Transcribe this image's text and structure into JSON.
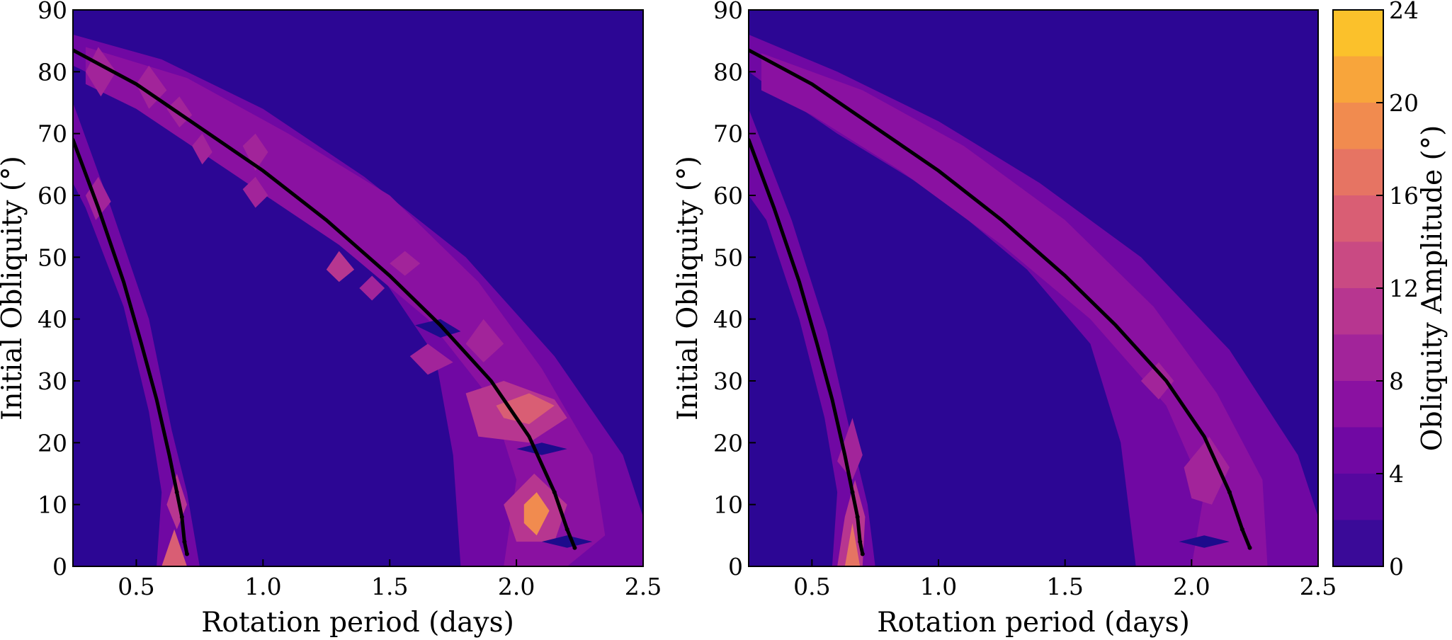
{
  "colors": {
    "background_field": "#2c0694",
    "curve": "#000000",
    "colorbar": [
      "#1d0b8c",
      "#3a0a98",
      "#56079f",
      "#7008a3",
      "#8a11a1",
      "#a2249a",
      "#b73690",
      "#c94a83",
      "#d95e74",
      "#e67463",
      "#f18b4f",
      "#f8a53b",
      "#fbc12b",
      "#f3e727"
    ]
  },
  "chart_data": [
    {
      "type": "contourf",
      "panel": "left",
      "xlabel": "Rotation period (days)",
      "ylabel": "Initial Obliquity (°)",
      "xlim": [
        0.25,
        2.5
      ],
      "ylim": [
        0,
        90
      ],
      "xticks": [
        "0.5",
        "1.0",
        "1.5",
        "2.0",
        "2.5"
      ],
      "yticks": [
        "0",
        "10",
        "20",
        "30",
        "40",
        "50",
        "60",
        "70",
        "80",
        "90"
      ],
      "background_amplitude": 2,
      "resonance_curves": [
        {
          "name": "inner",
          "x": [
            0.25,
            0.35,
            0.45,
            0.52,
            0.58,
            0.63,
            0.66,
            0.68,
            0.69,
            0.7
          ],
          "y": [
            69,
            58,
            46,
            36,
            27,
            18,
            12,
            8,
            4,
            2
          ]
        },
        {
          "name": "outer",
          "x": [
            0.25,
            0.5,
            0.75,
            1.0,
            1.25,
            1.5,
            1.7,
            1.9,
            2.05,
            2.15,
            2.2,
            2.23
          ],
          "y": [
            83.5,
            78,
            71,
            64,
            56,
            47,
            39,
            30,
            21,
            12,
            6,
            3
          ]
        }
      ],
      "contours": [
        {
          "level": 4,
          "points": [
            [
              0.25,
              75
            ],
            [
              0.4,
              58
            ],
            [
              0.55,
              40
            ],
            [
              0.64,
              22
            ],
            [
              0.7,
              12
            ],
            [
              0.75,
              0
            ],
            [
              0.58,
              0
            ],
            [
              0.6,
              12
            ],
            [
              0.55,
              25
            ],
            [
              0.45,
              42
            ],
            [
              0.3,
              58
            ],
            [
              0.25,
              62
            ]
          ]
        },
        {
          "level": 4,
          "points": [
            [
              0.25,
              86
            ],
            [
              0.6,
              82
            ],
            [
              1.0,
              74
            ],
            [
              1.4,
              63
            ],
            [
              1.8,
              50
            ],
            [
              2.15,
              34
            ],
            [
              2.42,
              18
            ],
            [
              2.5,
              8
            ],
            [
              2.5,
              0
            ],
            [
              1.78,
              0
            ],
            [
              1.75,
              18
            ],
            [
              1.68,
              34
            ],
            [
              1.45,
              48
            ],
            [
              1.1,
              60
            ],
            [
              0.7,
              70
            ],
            [
              0.4,
              78
            ],
            [
              0.25,
              81
            ]
          ]
        },
        {
          "level": 6,
          "points": [
            [
              0.3,
              84
            ],
            [
              0.7,
              79
            ],
            [
              1.1,
              70
            ],
            [
              1.5,
              60
            ],
            [
              1.85,
              46
            ],
            [
              2.1,
              32
            ],
            [
              2.3,
              18
            ],
            [
              2.35,
              5
            ],
            [
              2.2,
              0
            ],
            [
              1.95,
              0
            ],
            [
              2.0,
              14
            ],
            [
              1.9,
              27
            ],
            [
              1.65,
              40
            ],
            [
              1.3,
              52
            ],
            [
              0.9,
              63
            ],
            [
              0.5,
              74
            ],
            [
              0.3,
              78
            ]
          ]
        },
        {
          "level": 10,
          "points": [
            [
              1.8,
              28
            ],
            [
              1.95,
              30
            ],
            [
              2.15,
              27
            ],
            [
              2.2,
              24
            ],
            [
              2.05,
              20
            ],
            [
              1.85,
              21
            ]
          ]
        },
        {
          "level": 14,
          "points": [
            [
              1.92,
              26
            ],
            [
              2.05,
              28
            ],
            [
              2.15,
              26
            ],
            [
              2.05,
              23
            ],
            [
              1.95,
              24
            ]
          ]
        },
        {
          "level": 10,
          "points": [
            [
              1.95,
              10
            ],
            [
              2.07,
              15
            ],
            [
              2.2,
              10
            ],
            [
              2.15,
              4
            ],
            [
              2.0,
              4
            ]
          ]
        },
        {
          "level": 18,
          "points": [
            [
              2.03,
              10
            ],
            [
              2.08,
              12
            ],
            [
              2.13,
              9
            ],
            [
              2.08,
              5
            ],
            [
              2.03,
              7
            ]
          ]
        },
        {
          "level": 10,
          "points": [
            [
              1.25,
              48
            ],
            [
              1.3,
              51
            ],
            [
              1.36,
              48
            ],
            [
              1.3,
              46
            ]
          ]
        },
        {
          "level": 8,
          "points": [
            [
              1.5,
              49
            ],
            [
              1.56,
              51
            ],
            [
              1.62,
              49
            ],
            [
              1.56,
              47
            ]
          ]
        },
        {
          "level": 8,
          "points": [
            [
              1.38,
              45
            ],
            [
              1.43,
              47
            ],
            [
              1.48,
              45
            ],
            [
              1.43,
              43
            ]
          ]
        },
        {
          "level": 8,
          "points": [
            [
              1.8,
              36
            ],
            [
              1.87,
              40
            ],
            [
              1.95,
              36
            ],
            [
              1.87,
              33
            ]
          ]
        },
        {
          "level": 8,
          "points": [
            [
              1.58,
              34
            ],
            [
              1.65,
              36
            ],
            [
              1.75,
              33
            ],
            [
              1.65,
              31
            ]
          ]
        },
        {
          "level": 8,
          "points": [
            [
              0.3,
              80
            ],
            [
              0.35,
              84
            ],
            [
              0.42,
              80
            ],
            [
              0.36,
              76
            ]
          ]
        },
        {
          "level": 8,
          "points": [
            [
              0.5,
              78
            ],
            [
              0.55,
              81
            ],
            [
              0.62,
              77
            ],
            [
              0.55,
              74
            ]
          ]
        },
        {
          "level": 8,
          "points": [
            [
              0.62,
              74
            ],
            [
              0.67,
              76
            ],
            [
              0.72,
              73
            ],
            [
              0.67,
              71
            ]
          ]
        },
        {
          "level": 8,
          "points": [
            [
              0.92,
              68
            ],
            [
              0.97,
              70
            ],
            [
              1.02,
              67
            ],
            [
              0.97,
              64
            ]
          ]
        },
        {
          "level": 8,
          "points": [
            [
              0.92,
              61
            ],
            [
              0.97,
              63
            ],
            [
              1.02,
              60
            ],
            [
              0.97,
              58
            ]
          ]
        },
        {
          "level": 8,
          "points": [
            [
              0.72,
              68
            ],
            [
              0.76,
              70
            ],
            [
              0.8,
              67
            ],
            [
              0.76,
              65
            ]
          ]
        },
        {
          "level": 8,
          "points": [
            [
              0.3,
              60
            ],
            [
              0.35,
              63
            ],
            [
              0.4,
              59
            ],
            [
              0.34,
              56
            ]
          ]
        },
        {
          "level": 10,
          "points": [
            [
              0.62,
              10
            ],
            [
              0.66,
              15
            ],
            [
              0.7,
              10
            ],
            [
              0.66,
              6
            ]
          ]
        },
        {
          "level": 14,
          "points": [
            [
              0.6,
              0
            ],
            [
              0.65,
              6
            ],
            [
              0.7,
              0
            ]
          ]
        },
        {
          "level": 0,
          "points": [
            [
              2.1,
              4
            ],
            [
              2.2,
              5
            ],
            [
              2.3,
              4
            ],
            [
              2.2,
              3
            ]
          ]
        },
        {
          "level": 0,
          "points": [
            [
              2.0,
              19
            ],
            [
              2.1,
              20
            ],
            [
              2.2,
              19
            ],
            [
              2.1,
              18
            ]
          ]
        },
        {
          "level": 0,
          "points": [
            [
              1.6,
              39
            ],
            [
              1.7,
              40
            ],
            [
              1.78,
              38
            ],
            [
              1.7,
              37
            ]
          ]
        }
      ]
    },
    {
      "type": "contourf",
      "panel": "right",
      "xlabel": "Rotation period (days)",
      "ylabel": "Initial Obliquity (°)",
      "xlim": [
        0.25,
        2.5
      ],
      "ylim": [
        0,
        90
      ],
      "xticks": [
        "0.5",
        "1.0",
        "1.5",
        "2.0",
        "2.5"
      ],
      "yticks": [
        "0",
        "10",
        "20",
        "30",
        "40",
        "50",
        "60",
        "70",
        "80",
        "90"
      ],
      "background_amplitude": 2,
      "resonance_curves": [
        {
          "name": "inner",
          "x": [
            0.25,
            0.35,
            0.45,
            0.52,
            0.58,
            0.63,
            0.66,
            0.68,
            0.69,
            0.7
          ],
          "y": [
            69,
            58,
            46,
            36,
            27,
            18,
            12,
            8,
            4,
            2
          ]
        },
        {
          "name": "outer",
          "x": [
            0.25,
            0.5,
            0.75,
            1.0,
            1.25,
            1.5,
            1.7,
            1.9,
            2.05,
            2.15,
            2.2,
            2.23
          ],
          "y": [
            83.5,
            78,
            71,
            64,
            56,
            47,
            39,
            30,
            21,
            12,
            6,
            3
          ]
        }
      ],
      "contours": [
        {
          "level": 4,
          "points": [
            [
              0.25,
              74
            ],
            [
              0.42,
              56
            ],
            [
              0.56,
              38
            ],
            [
              0.65,
              22
            ],
            [
              0.72,
              10
            ],
            [
              0.75,
              0
            ],
            [
              0.58,
              0
            ],
            [
              0.6,
              12
            ],
            [
              0.55,
              24
            ],
            [
              0.45,
              40
            ],
            [
              0.32,
              56
            ],
            [
              0.25,
              60
            ]
          ]
        },
        {
          "level": 4,
          "points": [
            [
              0.25,
              86
            ],
            [
              0.6,
              80
            ],
            [
              1.0,
              72
            ],
            [
              1.4,
              62
            ],
            [
              1.8,
              50
            ],
            [
              2.15,
              35
            ],
            [
              2.42,
              18
            ],
            [
              2.5,
              8
            ],
            [
              2.5,
              0
            ],
            [
              1.78,
              0
            ],
            [
              1.72,
              20
            ],
            [
              1.6,
              36
            ],
            [
              1.35,
              48
            ],
            [
              1.0,
              60
            ],
            [
              0.6,
              70
            ],
            [
              0.35,
              77
            ],
            [
              0.25,
              80
            ]
          ]
        },
        {
          "level": 6,
          "points": [
            [
              0.3,
              83
            ],
            [
              0.7,
              77
            ],
            [
              1.1,
              68
            ],
            [
              1.5,
              56
            ],
            [
              1.85,
              42
            ],
            [
              2.1,
              28
            ],
            [
              2.28,
              14
            ],
            [
              2.3,
              0
            ],
            [
              2.0,
              0
            ],
            [
              2.05,
              12
            ],
            [
              1.9,
              26
            ],
            [
              1.6,
              40
            ],
            [
              1.25,
              52
            ],
            [
              0.85,
              64
            ],
            [
              0.5,
              73
            ],
            [
              0.3,
              77
            ]
          ]
        },
        {
          "level": 8,
          "points": [
            [
              1.97,
              16
            ],
            [
              2.07,
              21
            ],
            [
              2.15,
              16
            ],
            [
              2.08,
              10
            ],
            [
              2.0,
              11
            ]
          ]
        },
        {
          "level": 8,
          "points": [
            [
              1.8,
              30
            ],
            [
              1.87,
              33
            ],
            [
              1.93,
              30
            ],
            [
              1.87,
              27
            ]
          ]
        },
        {
          "level": 8,
          "points": [
            [
              0.6,
              17
            ],
            [
              0.66,
              24
            ],
            [
              0.7,
              18
            ],
            [
              0.66,
              14
            ]
          ]
        },
        {
          "level": 10,
          "points": [
            [
              0.6,
              0
            ],
            [
              0.63,
              8
            ],
            [
              0.67,
              14
            ],
            [
              0.71,
              8
            ],
            [
              0.7,
              0
            ]
          ]
        },
        {
          "level": 16,
          "points": [
            [
              0.63,
              0
            ],
            [
              0.66,
              7
            ],
            [
              0.69,
              0
            ]
          ]
        },
        {
          "level": 0,
          "points": [
            [
              1.95,
              4
            ],
            [
              2.05,
              5
            ],
            [
              2.15,
              4
            ],
            [
              2.05,
              3
            ]
          ]
        }
      ],
      "colorbar": {
        "label": "Obliquity Amplitude (°)",
        "range": [
          0,
          24
        ],
        "ticks": [
          "0",
          "4",
          "8",
          "12",
          "16",
          "20",
          "24"
        ],
        "levels": [
          0,
          2,
          4,
          6,
          8,
          10,
          12,
          14,
          16,
          18,
          20,
          22,
          24
        ]
      }
    }
  ]
}
